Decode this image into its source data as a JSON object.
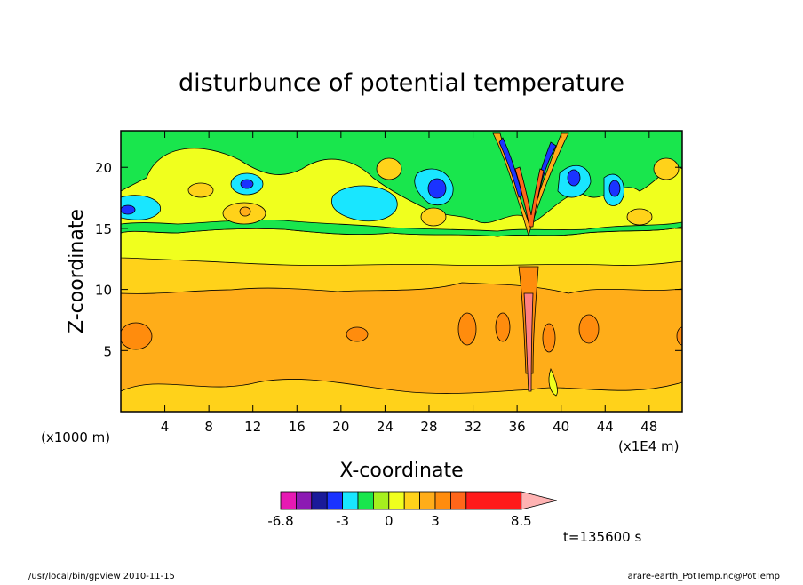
{
  "chart_data": {
    "type": "heatmap",
    "title": "disturbunce of potential temperature",
    "xlabel": "X-coordinate",
    "ylabel": "Z-coordinate",
    "x_unit_left": "(x1000 m)",
    "x_unit_right": "(x1E4 m)",
    "xlim": [
      0,
      51
    ],
    "ylim": [
      0,
      23
    ],
    "x_ticks": [
      4,
      8,
      12,
      16,
      20,
      24,
      28,
      32,
      36,
      40,
      44,
      48
    ],
    "x_tick_labels": [
      "4",
      "8",
      "12",
      "16",
      "20",
      "24",
      "28",
      "32",
      "36",
      "40",
      "44",
      "48"
    ],
    "y_ticks": [
      5,
      10,
      15,
      20
    ],
    "y_tick_labels": [
      "5",
      "10",
      "15",
      "20"
    ],
    "time_label": "t=135600 s",
    "colorbar": {
      "levels": [
        -6.8,
        -6,
        -5,
        -4,
        -3,
        -2,
        -1,
        0,
        1,
        2,
        3,
        4,
        5,
        8.5
      ],
      "labels": [
        {
          "value": -6.8,
          "text": "-6.8"
        },
        {
          "value": -3,
          "text": "-3"
        },
        {
          "value": 0,
          "text": "0"
        },
        {
          "value": 3,
          "text": "3"
        },
        {
          "value": 8.5,
          "text": "8.5"
        }
      ],
      "colors": [
        "#e619b3",
        "#8c1ab3",
        "#1a1a99",
        "#1a33ff",
        "#19e6ff",
        "#19e64d",
        "#a6f01e",
        "#f0ff1e",
        "#ffd21a",
        "#ffad19",
        "#ff8c0d",
        "#ff661a",
        "#ff1a1a",
        "#ff8080",
        "#ffb3b3"
      ]
    },
    "contour_level_colors": {
      "level_-3_to_-2": "#1a33ff",
      "level_-2_to_-1": "#19e6ff",
      "level_-1_to_0": "#19e64d",
      "level_0_to_1": "#f0ff1e",
      "level_1_to_2": "#ffd21a",
      "level_2_to_3": "#ffad19",
      "level_3_to_4": "#ff8c0d",
      "level_4_to_5": "#ff661a",
      "level_5_to_8.5": "#ff8080"
    }
  },
  "footer": {
    "left": "/usr/local/bin/gpview  2010-11-15",
    "right": "arare-earth_PotTemp.nc@PotTemp"
  }
}
